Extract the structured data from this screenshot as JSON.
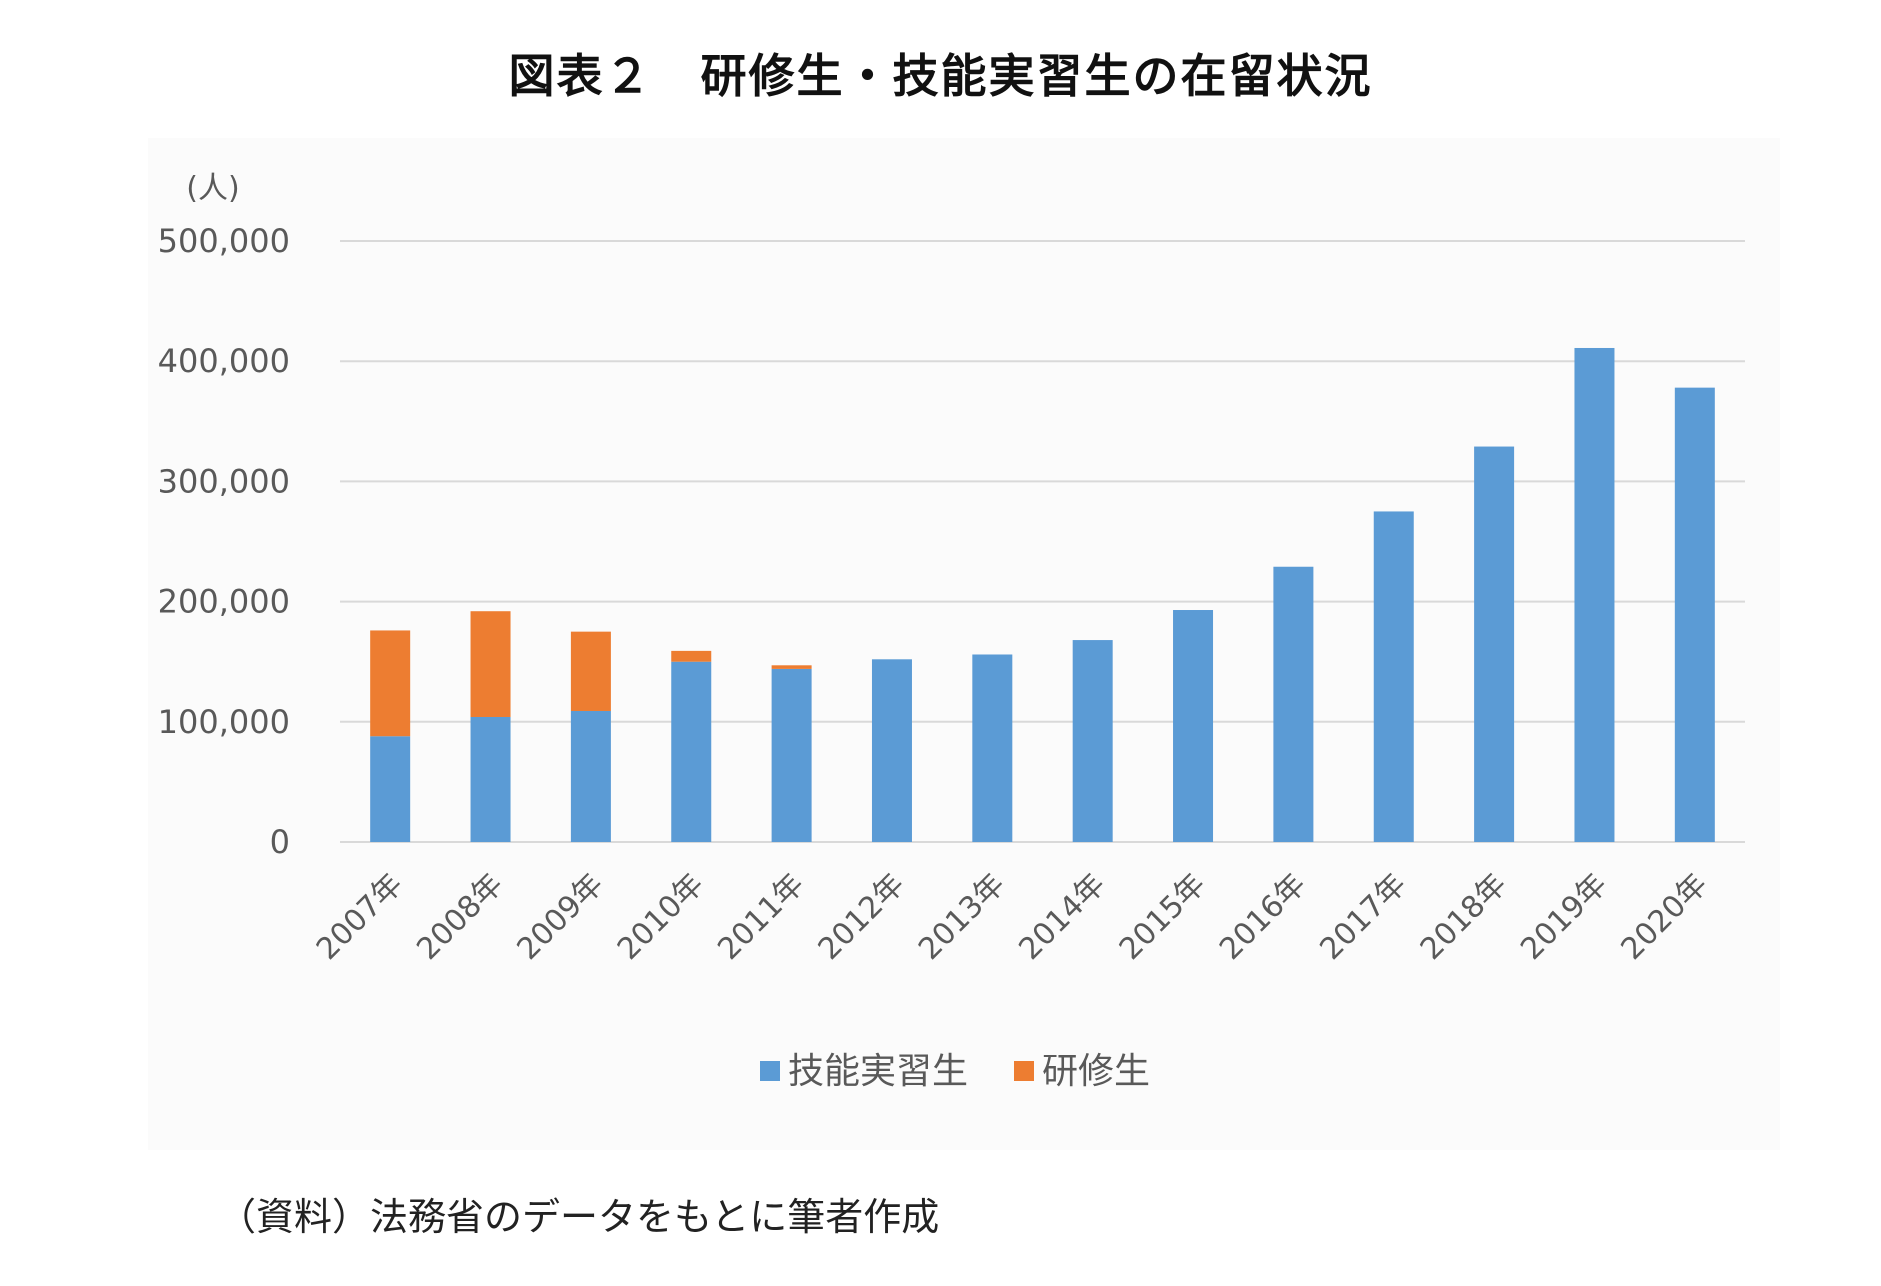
{
  "title": "図表２　研修生・技能実習生の在留状況",
  "source_note": "（資料）法務省のデータをもとに筆者作成",
  "colors": {
    "技能実習生": "#5b9bd5",
    "研修生": "#ed7d31",
    "grid": "#d9d9d9",
    "axis_text": "#595959"
  },
  "chart_data": {
    "type": "bar",
    "stacked": true,
    "title": "図表２　研修生・技能実習生の在留状況",
    "ylabel": "(人)",
    "xlabel": "",
    "ylim": [
      0,
      500000
    ],
    "yticks": [
      0,
      100000,
      200000,
      300000,
      400000,
      500000
    ],
    "ytick_labels": [
      "0",
      "100,000",
      "200,000",
      "300,000",
      "400,000",
      "500,000"
    ],
    "grid": true,
    "legend_position": "bottom",
    "categories": [
      "2007年",
      "2008年",
      "2009年",
      "2010年",
      "2011年",
      "2012年",
      "2013年",
      "2014年",
      "2015年",
      "2016年",
      "2017年",
      "2018年",
      "2019年",
      "2020年"
    ],
    "series": [
      {
        "name": "技能実習生",
        "values": [
          88000,
          104000,
          109000,
          150000,
          144000,
          152000,
          156000,
          168000,
          193000,
          229000,
          275000,
          329000,
          411000,
          378000
        ]
      },
      {
        "name": "研修生",
        "values": [
          88000,
          88000,
          66000,
          9000,
          3000,
          0,
          0,
          0,
          0,
          0,
          0,
          0,
          0,
          0
        ]
      }
    ]
  }
}
